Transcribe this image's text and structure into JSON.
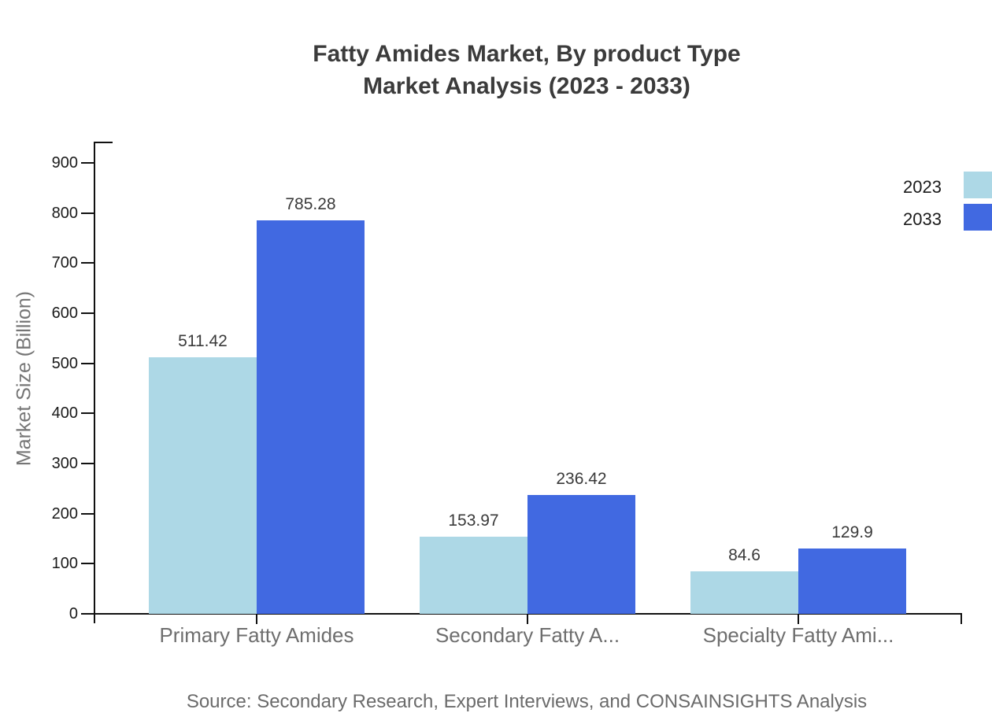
{
  "title": {
    "line1": "Fatty Amides Market, By product Type",
    "line2": "Market Analysis (2023 - 2033)"
  },
  "source_note": "Source: Secondary Research, Expert Interviews, and CONSAINSIGHTS Analysis",
  "chart_data": {
    "type": "bar",
    "title": "Fatty Amides Market, By product Type — Market Analysis (2023 - 2033)",
    "categories": [
      "Primary Fatty Amides",
      "Secondary Fatty A...",
      "Specialty Fatty Ami..."
    ],
    "series": [
      {
        "name": "2023",
        "color": "#add8e6",
        "values": [
          511.42,
          153.97,
          84.6
        ]
      },
      {
        "name": "2033",
        "color": "#4169e1",
        "values": [
          785.28,
          236.42,
          129.9
        ]
      }
    ],
    "xlabel": "",
    "ylabel": "Market Size (Billion)",
    "ylim": [
      0,
      950
    ],
    "yticks": [
      0,
      100,
      200,
      300,
      400,
      500,
      600,
      700,
      800,
      900
    ],
    "grid": false,
    "legend_position": "top-right",
    "value_labels_shown": true
  },
  "colors": {
    "axis": "#111111",
    "title_text": "#3b3b3b",
    "tick_text": "#1a1a1a",
    "category_text": "#6e6e6e",
    "source_text": "#6b6b6b",
    "series_2023": "#add8e6",
    "series_2033": "#4169e1"
  }
}
